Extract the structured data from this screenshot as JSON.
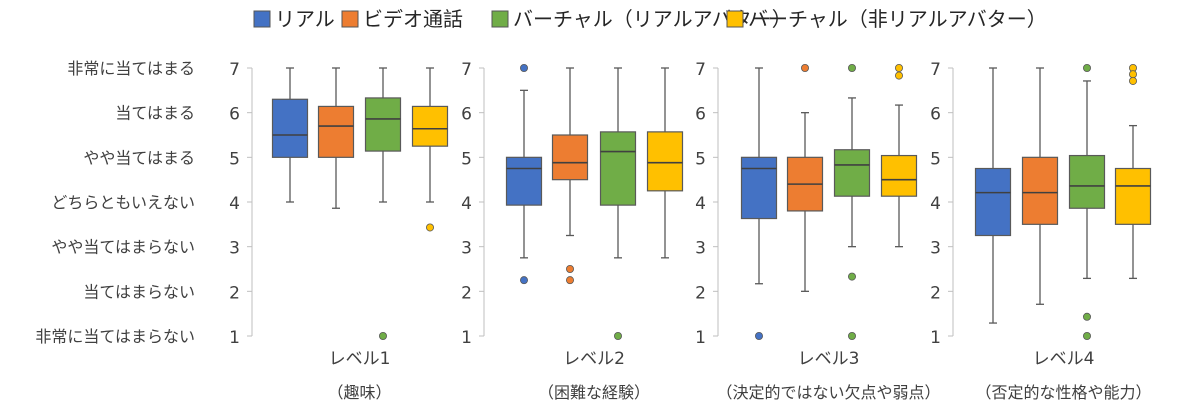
{
  "legend": [
    {
      "label": "リアル",
      "color": "#4472C4"
    },
    {
      "label": "ビデオ通話",
      "color": "#ED7D31"
    },
    {
      "label": "バーチャル（リアルアバター）",
      "color": "#70AD47"
    },
    {
      "label": "バーチャル（非リアルアバター）",
      "color": "#FFC000"
    }
  ],
  "likert_labels": [
    {
      "value": 7,
      "label": "非常に当てはまる"
    },
    {
      "value": 6,
      "label": "当てはまる"
    },
    {
      "value": 5,
      "label": "やや当てはまる"
    },
    {
      "value": 4,
      "label": "どちらともいえない"
    },
    {
      "value": 3,
      "label": "やや当てはまらない"
    },
    {
      "value": 2,
      "label": "当てはまらない"
    },
    {
      "value": 1,
      "label": "非常に当てはまらない"
    }
  ],
  "chart_data": {
    "type": "boxplot",
    "ylim": [
      1,
      7
    ],
    "yticks": [
      1,
      2,
      3,
      4,
      5,
      6,
      7
    ],
    "grid": false,
    "legend_position": "top",
    "series_names": [
      "リアル",
      "ビデオ通話",
      "バーチャル（リアルアバター）",
      "バーチャル（非リアルアバター）"
    ],
    "colors": [
      "#4472C4",
      "#ED7D31",
      "#70AD47",
      "#FFC000"
    ],
    "panels": [
      {
        "label": "レベル1",
        "sublabel": "（趣味）",
        "boxes": [
          {
            "min": 4,
            "q1": 5,
            "median": 5.5,
            "q3": 6.3,
            "max": 7,
            "outliers": []
          },
          {
            "min": 3.86,
            "q1": 5,
            "median": 5.7,
            "q3": 6.14,
            "max": 7,
            "outliers": []
          },
          {
            "min": 4,
            "q1": 5.14,
            "median": 5.86,
            "q3": 6.33,
            "max": 7,
            "outliers": [
              1
            ]
          },
          {
            "min": 4,
            "q1": 5.25,
            "median": 5.64,
            "q3": 6.14,
            "max": 7,
            "outliers": [
              3.43
            ]
          }
        ]
      },
      {
        "label": "レベル2",
        "sublabel": "（困難な経験）",
        "boxes": [
          {
            "min": 2.75,
            "q1": 3.93,
            "median": 4.75,
            "q3": 5,
            "max": 6.5,
            "outliers": [
              7,
              2.25
            ]
          },
          {
            "min": 3.25,
            "q1": 4.5,
            "median": 4.88,
            "q3": 5.5,
            "max": 7,
            "outliers": [
              2.5,
              2.25
            ]
          },
          {
            "min": 2.75,
            "q1": 3.93,
            "median": 5.13,
            "q3": 5.57,
            "max": 7,
            "outliers": [
              1
            ]
          },
          {
            "min": 2.75,
            "q1": 4.25,
            "median": 4.88,
            "q3": 5.57,
            "max": 7,
            "outliers": []
          }
        ]
      },
      {
        "label": "レベル3",
        "sublabel": "（決定的ではない欠点や弱点）",
        "boxes": [
          {
            "min": 2.17,
            "q1": 3.63,
            "median": 4.75,
            "q3": 5,
            "max": 7,
            "outliers": [
              1
            ]
          },
          {
            "min": 2,
            "q1": 3.8,
            "median": 4.4,
            "q3": 5,
            "max": 6,
            "outliers": [
              7
            ]
          },
          {
            "min": 3,
            "q1": 4.13,
            "median": 4.83,
            "q3": 5.17,
            "max": 6.33,
            "outliers": [
              7,
              2.33,
              1
            ]
          },
          {
            "min": 3,
            "q1": 4.13,
            "median": 4.5,
            "q3": 5.04,
            "max": 6.17,
            "outliers": [
              7,
              6.83
            ]
          }
        ]
      },
      {
        "label": "レベル4",
        "sublabel": "（否定的な性格や能力）",
        "boxes": [
          {
            "min": 1.29,
            "q1": 3.25,
            "median": 4.21,
            "q3": 4.75,
            "max": 7,
            "outliers": []
          },
          {
            "min": 1.71,
            "q1": 3.5,
            "median": 4.21,
            "q3": 5,
            "max": 7,
            "outliers": []
          },
          {
            "min": 2.29,
            "q1": 3.86,
            "median": 4.36,
            "q3": 5.04,
            "max": 6.71,
            "outliers": [
              7,
              1.43,
              1
            ]
          },
          {
            "min": 2.29,
            "q1": 3.5,
            "median": 4.36,
            "q3": 4.75,
            "max": 5.71,
            "outliers": [
              7,
              6.86,
              6.71
            ]
          }
        ]
      }
    ]
  }
}
